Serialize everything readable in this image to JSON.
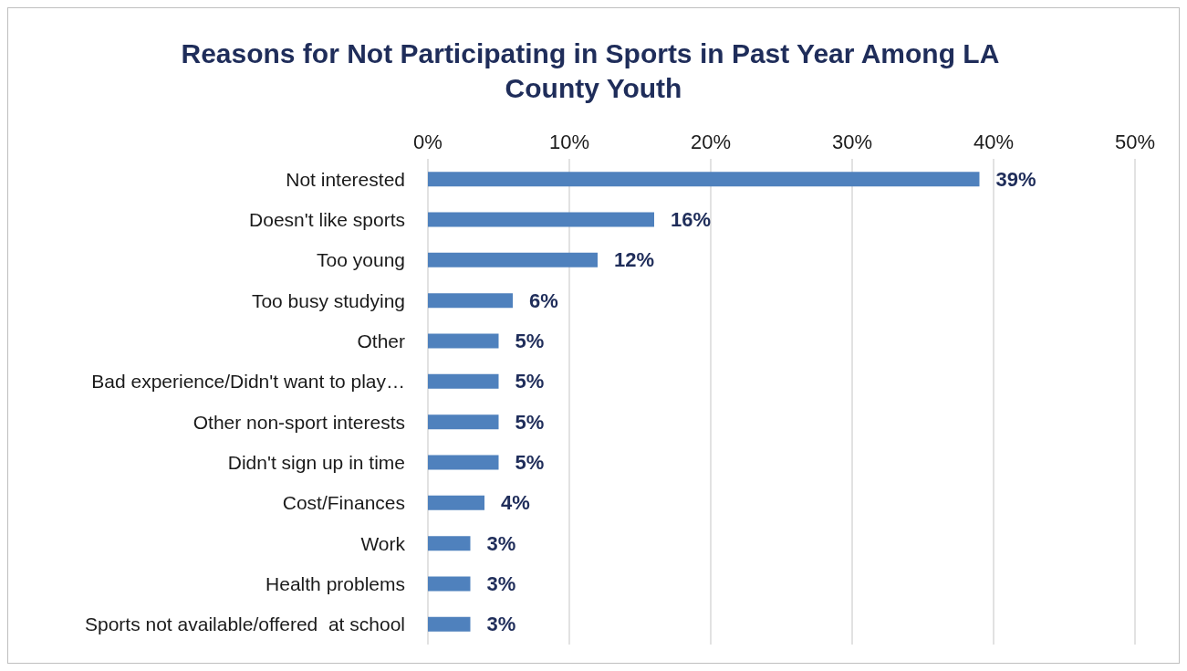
{
  "chart_data": {
    "type": "bar",
    "orientation": "horizontal",
    "title": "Reasons for Not Participating in Sports in Past Year Among LA County Youth",
    "categories": [
      "Not interested",
      "Doesn't like sports",
      "Too young",
      "Too busy studying",
      "Other",
      "Bad experience/Didn't want to play…",
      "Other non-sport interests",
      "Didn't sign up in time",
      "Cost/Finances",
      "Work",
      "Health problems",
      "Sports not available/offered  at school"
    ],
    "values": [
      39,
      16,
      12,
      6,
      5,
      5,
      5,
      5,
      4,
      3,
      3,
      3
    ],
    "value_labels": [
      "39%",
      "16%",
      "12%",
      "6%",
      "5%",
      "5%",
      "5%",
      "5%",
      "4%",
      "3%",
      "3%",
      "3%"
    ],
    "color": "#4f81bd",
    "xlim": [
      0,
      50
    ],
    "xticks": [
      {
        "value": 0,
        "label": "0%"
      },
      {
        "value": 10,
        "label": "10%"
      },
      {
        "value": 20,
        "label": "20%"
      },
      {
        "value": 30,
        "label": "30%"
      },
      {
        "value": 40,
        "label": "40%"
      },
      {
        "value": 50,
        "label": "50%"
      }
    ],
    "grid": "x"
  }
}
